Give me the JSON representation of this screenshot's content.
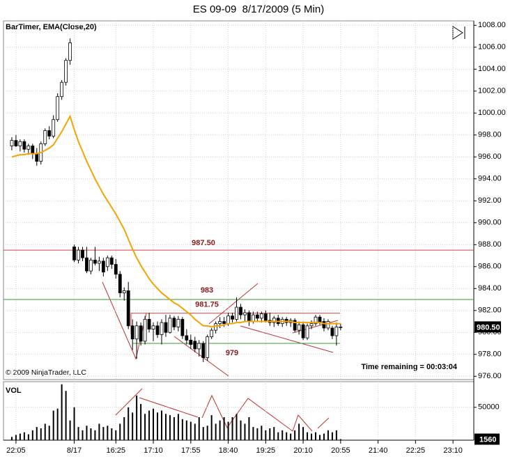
{
  "chart_data": [
    {
      "type": "candlestick",
      "title": "ES 09-09  8/17/2009 (5 Min)",
      "indicator_label": "BarTimer, EMA(Close,20)",
      "copyright": "© 2009 NinjaTrader, LLC",
      "timer": "Time remaining = 00:03:04",
      "xlim": [
        -1,
        112
      ],
      "ylim": [
        975.7,
        1008.4
      ],
      "yticks": [
        {
          "value": 976,
          "label": "976.00"
        },
        {
          "value": 978,
          "label": "978.00"
        },
        {
          "value": 980,
          "label": "980.00"
        },
        {
          "value": 982,
          "label": "982.00"
        },
        {
          "value": 984,
          "label": "984.00"
        },
        {
          "value": 986,
          "label": "986.00"
        },
        {
          "value": 988,
          "label": "988.00"
        },
        {
          "value": 990,
          "label": "990.00"
        },
        {
          "value": 992,
          "label": "992.00"
        },
        {
          "value": 994,
          "label": "994.00"
        },
        {
          "value": 996,
          "label": "996.00"
        },
        {
          "value": 998,
          "label": "998.00"
        },
        {
          "value": 1000,
          "label": "1000.00"
        },
        {
          "value": 1002,
          "label": "1002.00"
        },
        {
          "value": 1004,
          "label": "1004.00"
        },
        {
          "value": 1006,
          "label": "1006.00"
        },
        {
          "value": 1008,
          "label": "1008.00"
        }
      ],
      "grid": true,
      "x": [
        1,
        2,
        3,
        4,
        5,
        6,
        7,
        8,
        9,
        10,
        11,
        12,
        13,
        14,
        15,
        16,
        17,
        18,
        19,
        20,
        21,
        22,
        23,
        24,
        25,
        26,
        27,
        28,
        29,
        30,
        31,
        32,
        33,
        34,
        35,
        36,
        37,
        38,
        39,
        40,
        41,
        42,
        43,
        44,
        45,
        46,
        47,
        48,
        49,
        50,
        51,
        52,
        53,
        54,
        55,
        56,
        57,
        58,
        59,
        60,
        61,
        62,
        63,
        64,
        65,
        66,
        67,
        68,
        69,
        70,
        71,
        72,
        73,
        74,
        75,
        76,
        77,
        78,
        79,
        80
      ],
      "open": [
        997.0,
        997.5,
        997.0,
        997.4,
        996.7,
        997.0,
        996.3,
        995.6,
        997.2,
        998.4,
        997.9,
        999.4,
        1001.5,
        1002.8,
        1004.8,
        987.8,
        986.6,
        987.5,
        986.8,
        985.6,
        986.6,
        986.3,
        986.5,
        986.0,
        986.8,
        986.2,
        985.3,
        983.6,
        983.8,
        980.6,
        979.4,
        980.6,
        979.2,
        981.2,
        980.3,
        980.6,
        979.8,
        980.9,
        980.0,
        981.3,
        980.5,
        981.2,
        979.7,
        979.3,
        979.2,
        978.5,
        979.0,
        977.7,
        979.6,
        980.2,
        980.8,
        981.0,
        980.8,
        981.5,
        981.2,
        982.3,
        981.6,
        981.8,
        981.0,
        981.6,
        981.3,
        981.7,
        981.1,
        980.9,
        981.3,
        980.8,
        981.2,
        980.9,
        981.1,
        980.2,
        980.7,
        979.5,
        980.6,
        980.8,
        981.4,
        981.0,
        980.4,
        980.4,
        979.7,
        980.5
      ],
      "high": [
        997.8,
        998.0,
        997.6,
        997.6,
        997.2,
        997.2,
        996.8,
        997.4,
        998.6,
        998.8,
        999.8,
        1001.8,
        1003.0,
        1005.0,
        1006.8,
        988.0,
        987.8,
        987.8,
        987.8,
        986.8,
        987.8,
        986.9,
        986.8,
        987.0,
        987.0,
        986.7,
        985.6,
        984.1,
        984.6,
        981.2,
        981.0,
        980.9,
        981.5,
        981.8,
        980.9,
        981.0,
        981.2,
        981.6,
        981.6,
        981.5,
        981.5,
        981.4,
        980.3,
        979.8,
        979.6,
        979.3,
        979.2,
        979.8,
        980.4,
        981.0,
        981.4,
        981.4,
        981.8,
        981.8,
        983.2,
        982.6,
        982.1,
        982.0,
        981.9,
        981.9,
        981.9,
        982.0,
        981.8,
        981.5,
        981.6,
        981.4,
        981.4,
        981.3,
        981.3,
        981.0,
        981.0,
        980.8,
        981.1,
        981.6,
        981.6,
        981.3,
        981.2,
        980.6,
        980.9,
        980.8
      ],
      "low": [
        996.6,
        996.9,
        996.5,
        996.4,
        996.2,
        995.8,
        995.2,
        995.3,
        997.0,
        997.6,
        997.7,
        999.2,
        1001.2,
        1002.5,
        1004.4,
        986.4,
        986.3,
        986.5,
        985.4,
        985.3,
        986.1,
        985.6,
        985.1,
        985.6,
        985.8,
        984.9,
        983.2,
        982.9,
        980.3,
        978.4,
        977.6,
        978.8,
        978.9,
        980.0,
        979.2,
        979.5,
        978.9,
        979.6,
        979.9,
        980.2,
        980.1,
        979.4,
        978.9,
        978.5,
        978.2,
        977.8,
        977.3,
        977.4,
        979.4,
        979.9,
        980.4,
        980.5,
        980.6,
        980.9,
        981.0,
        981.2,
        981.0,
        980.6,
        980.8,
        981.0,
        980.9,
        980.9,
        980.6,
        980.5,
        980.6,
        980.5,
        980.6,
        980.5,
        980.0,
        979.8,
        979.3,
        979.3,
        980.3,
        980.6,
        980.7,
        980.1,
        980.2,
        979.4,
        978.8,
        980.2
      ],
      "close": [
        997.5,
        997.0,
        997.4,
        996.7,
        997.0,
        996.3,
        995.6,
        997.2,
        998.4,
        997.9,
        999.4,
        1001.5,
        1002.8,
        1004.8,
        1006.4,
        986.6,
        987.5,
        986.8,
        985.6,
        986.6,
        986.3,
        986.5,
        985.5,
        986.8,
        986.2,
        985.3,
        983.6,
        983.8,
        980.6,
        979.4,
        980.6,
        979.2,
        981.2,
        980.3,
        980.6,
        979.8,
        980.9,
        980.0,
        981.3,
        980.5,
        981.2,
        979.7,
        979.3,
        978.9,
        978.5,
        979.0,
        977.7,
        979.6,
        980.2,
        980.8,
        981.0,
        980.8,
        981.5,
        981.2,
        982.3,
        981.6,
        981.8,
        981.0,
        981.6,
        981.3,
        981.7,
        981.1,
        980.9,
        981.3,
        980.8,
        981.2,
        980.9,
        981.1,
        980.2,
        980.7,
        979.5,
        980.6,
        980.8,
        981.4,
        980.9,
        980.4,
        981.0,
        979.7,
        980.5,
        980.5
      ],
      "up_color": "#ffffff",
      "down_color": "#000000",
      "ema": {
        "name": "EMA(Close,20)",
        "color": "#f5a300",
        "values": [
          996.0,
          996.1,
          996.2,
          996.2,
          996.3,
          996.3,
          996.3,
          996.4,
          996.6,
          996.8,
          997.1,
          997.7,
          998.3,
          999.0,
          999.7,
          998.5,
          997.4,
          996.5,
          995.6,
          994.8,
          994.0,
          993.3,
          992.6,
          992.0,
          991.4,
          990.8,
          990.1,
          989.4,
          988.5,
          987.6,
          986.8,
          986.1,
          985.5,
          984.9,
          984.4,
          984.0,
          983.6,
          983.3,
          983.0,
          982.7,
          982.5,
          982.2,
          981.9,
          981.6,
          981.2,
          980.9,
          980.6,
          980.6,
          980.5,
          980.6,
          980.6,
          980.7,
          980.8,
          980.8,
          980.9,
          980.9,
          981.0,
          981.0,
          981.0,
          981.0,
          981.0,
          981.0,
          981.0,
          981.0,
          981.0,
          981.0,
          981.0,
          981.0,
          980.9,
          980.9,
          980.9,
          980.9,
          980.9,
          980.9,
          980.9,
          980.8,
          980.8,
          980.8,
          980.8,
          980.8
        ]
      },
      "hlines": [
        {
          "value": 987.5,
          "label": "987.50",
          "color": "#d04040"
        },
        {
          "value": 983,
          "label": "983",
          "color": "#3a9a3a"
        },
        {
          "value": 981.75,
          "label": "981.75",
          "color": "#d04040"
        },
        {
          "value": 979,
          "label": "979",
          "color": "#3a9a3a"
        }
      ],
      "last_price": {
        "value": 980.5,
        "label": "980.50"
      }
    },
    {
      "type": "bar",
      "label": "VOL",
      "xlim": [
        -1,
        112
      ],
      "xticks": [
        {
          "value": 2,
          "label": "22:05"
        },
        {
          "value": 16,
          "label": "8/17"
        },
        {
          "value": 26,
          "label": "16:25"
        },
        {
          "value": 35,
          "label": "17:10"
        },
        {
          "value": 44,
          "label": "17:55"
        },
        {
          "value": 53,
          "label": "18:40"
        },
        {
          "value": 62,
          "label": "19:25"
        },
        {
          "value": 71,
          "label": "20:10"
        },
        {
          "value": 80,
          "label": "20:55"
        },
        {
          "value": 89,
          "label": "21:40"
        },
        {
          "value": 98,
          "label": "22:25"
        },
        {
          "value": 107,
          "label": "23:10"
        }
      ],
      "ylim": [
        0,
        89000
      ],
      "yticks": [
        50000
      ],
      "color": "#000000",
      "values": [
        5000,
        8000,
        10000,
        12000,
        9000,
        15000,
        20000,
        18000,
        25000,
        22000,
        45000,
        48000,
        85000,
        75000,
        30000,
        50000,
        20000,
        15000,
        22000,
        18000,
        15000,
        25000,
        20000,
        22000,
        18000,
        15000,
        25000,
        35000,
        50000,
        42000,
        68000,
        55000,
        40000,
        45000,
        48000,
        42000,
        45000,
        40000,
        38000,
        35000,
        40000,
        32000,
        30000,
        28000,
        25000,
        35000,
        20000,
        22000,
        38000,
        25000,
        30000,
        35000,
        28000,
        35000,
        40000,
        30000,
        25000,
        35000,
        20000,
        18000,
        22000,
        15000,
        18000,
        20000,
        12000,
        15000,
        12000,
        10000,
        15000,
        25000,
        20000,
        12000,
        10000,
        12000,
        8000,
        10000,
        15000,
        12000,
        15000,
        1560
      ],
      "last": 1560
    }
  ]
}
